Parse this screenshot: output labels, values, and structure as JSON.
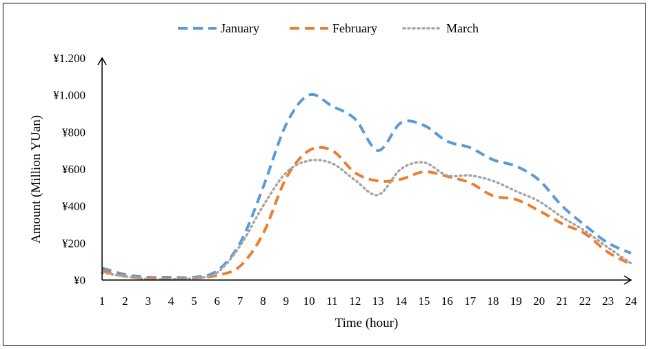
{
  "chart_data": {
    "type": "line",
    "title": "",
    "xlabel": "Time (hour)",
    "ylabel": "Amount (Million YUan)",
    "x": [
      1,
      2,
      3,
      4,
      5,
      6,
      7,
      8,
      9,
      10,
      11,
      12,
      13,
      14,
      15,
      16,
      17,
      18,
      19,
      20,
      21,
      22,
      23,
      24
    ],
    "ylim": [
      0,
      1200
    ],
    "yticks": [
      0,
      200,
      400,
      600,
      800,
      1000,
      1200
    ],
    "ytick_labels": [
      "¥0",
      "¥200",
      "¥400",
      "¥600",
      "¥800",
      "¥1.000",
      "¥1.200"
    ],
    "grid": false,
    "legend_position": "top",
    "series": [
      {
        "name": "January",
        "color": "#5b9bd5",
        "style": "dashed",
        "values": [
          65,
          30,
          15,
          15,
          15,
          50,
          200,
          500,
          840,
          1000,
          940,
          870,
          700,
          850,
          835,
          750,
          715,
          650,
          615,
          540,
          400,
          295,
          200,
          145
        ]
      },
      {
        "name": "February",
        "color": "#ed7d31",
        "style": "dashed",
        "values": [
          50,
          20,
          10,
          5,
          10,
          25,
          75,
          250,
          550,
          700,
          700,
          580,
          535,
          545,
          585,
          560,
          525,
          455,
          435,
          375,
          305,
          250,
          150,
          85
        ]
      },
      {
        "name": "March",
        "color": "#a5a5a5",
        "style": "dotted",
        "values": [
          40,
          20,
          5,
          5,
          10,
          40,
          185,
          400,
          580,
          645,
          630,
          540,
          460,
          600,
          635,
          565,
          565,
          535,
          480,
          425,
          340,
          265,
          175,
          90
        ]
      }
    ]
  }
}
